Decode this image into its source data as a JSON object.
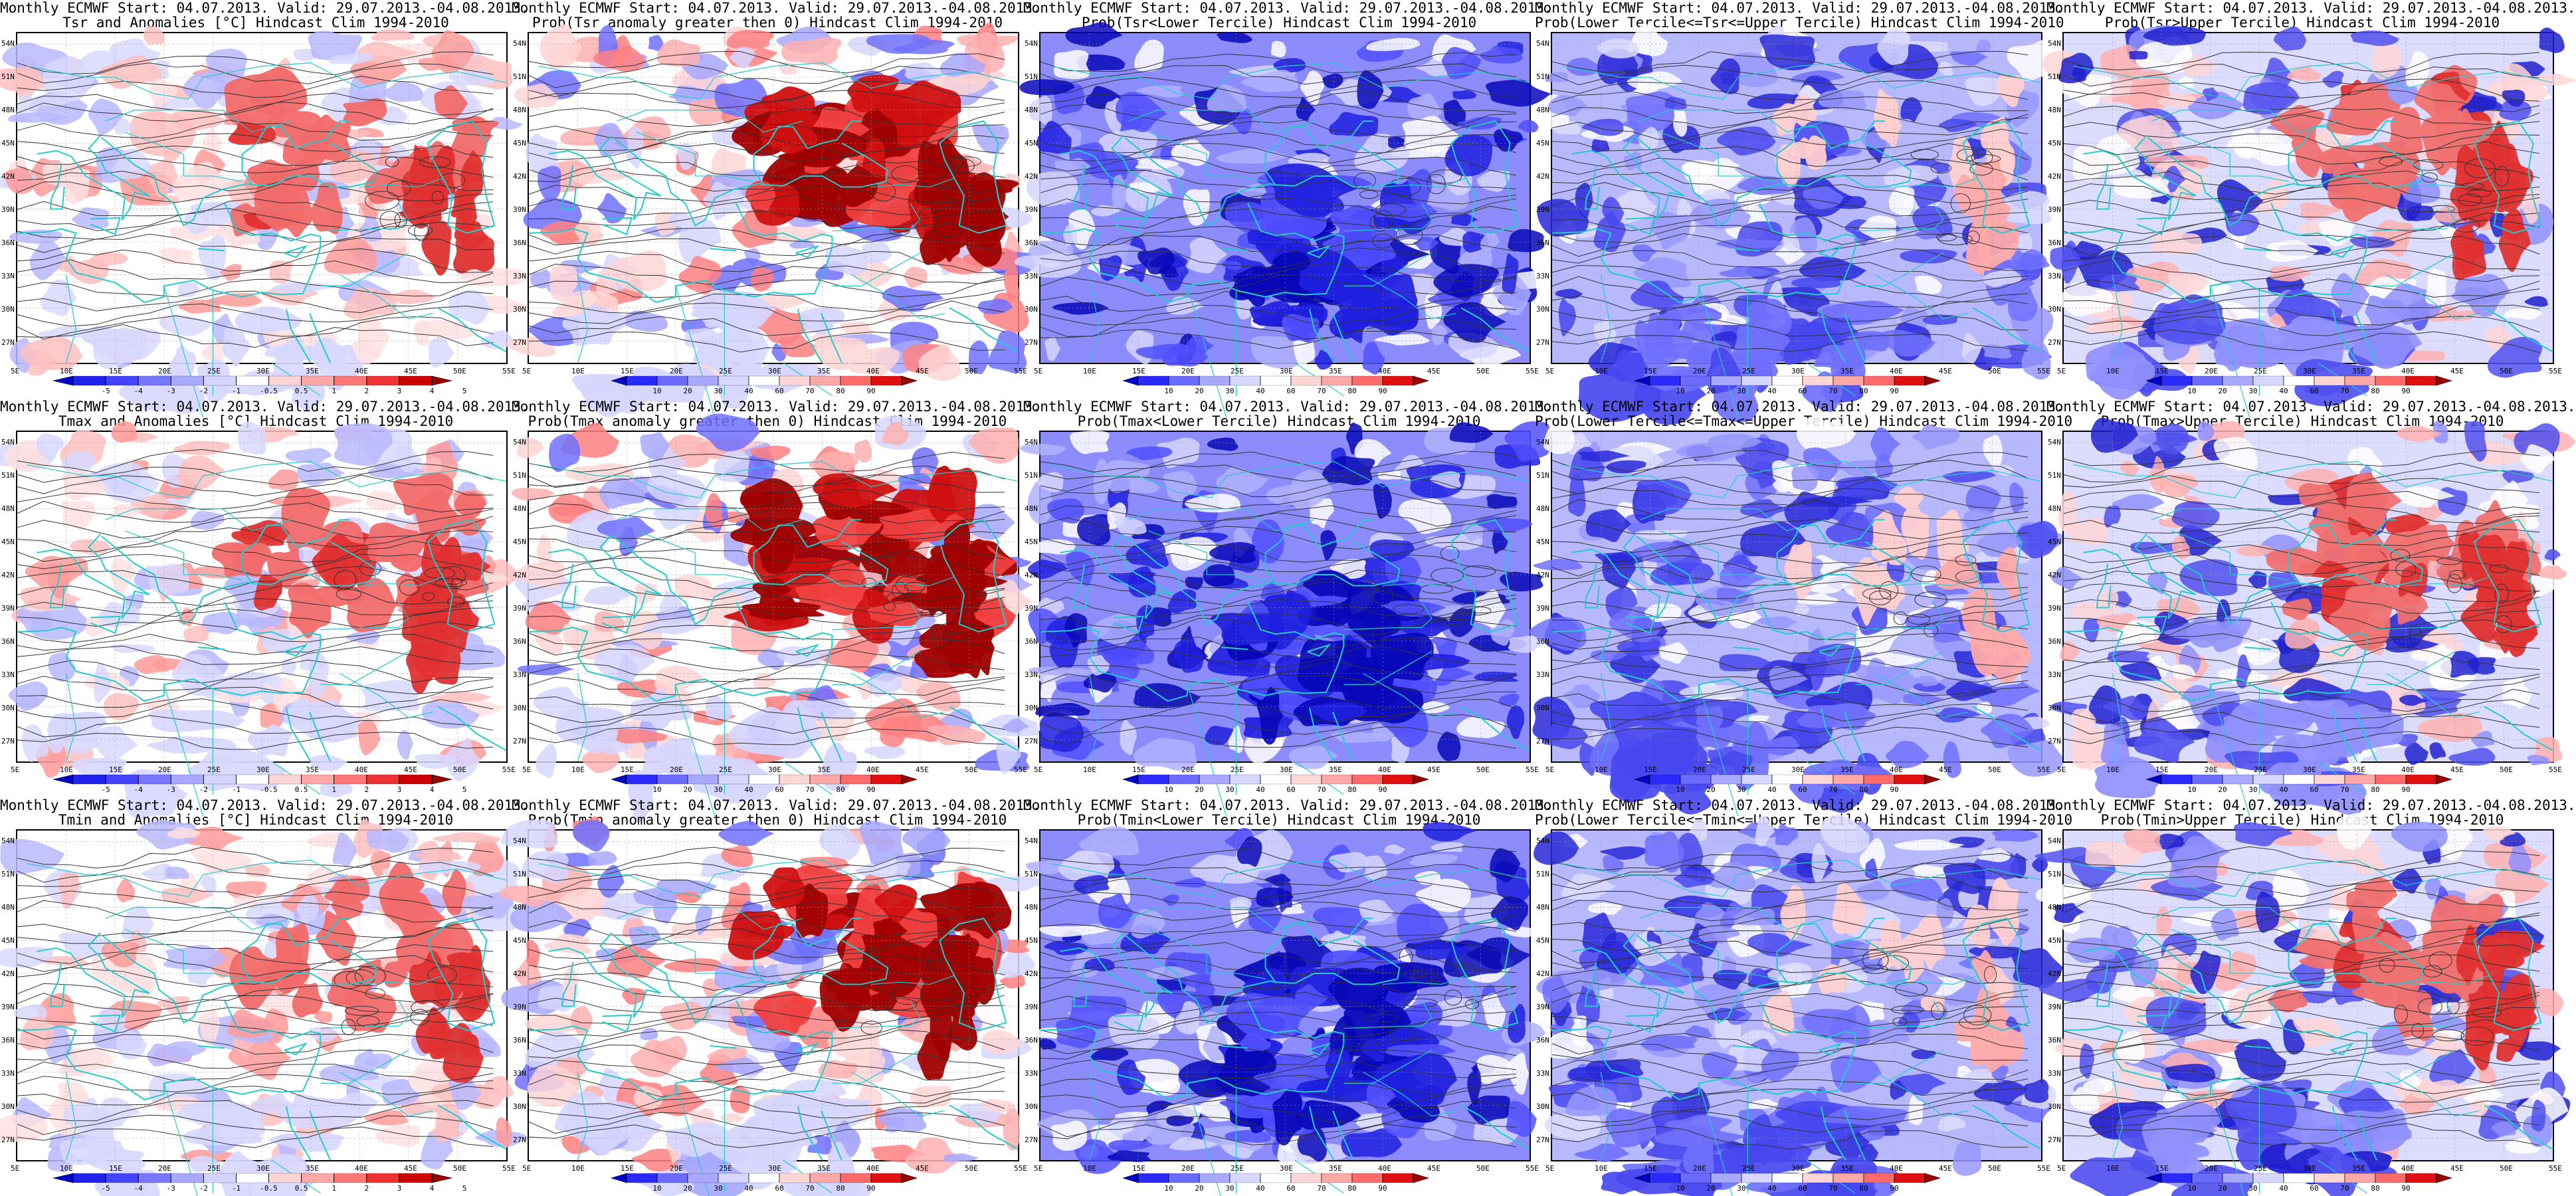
{
  "panels": [
    {
      "l1": "Monthly ECMWF Start: 04.07.2013. Valid: 29.07.2013.-04.08.2013.",
      "l2": "Tsr and Anomalies [°C] Hindcast Clim 1994-2010",
      "scheme": "anom",
      "cbar": "anom",
      "hot": 0.45,
      "cold": 0.1
    },
    {
      "l1": "Monthly ECMWF Start: 04.07.2013. Valid: 29.07.2013.-04.08.2013.",
      "l2": "Prob(Tsr anomaly greater then 0) Hindcast Clim 1994-2010",
      "scheme": "probpos",
      "cbar": "prob",
      "hot": 0.9,
      "cold": 0.2
    },
    {
      "l1": "Monthly ECMWF Start: 04.07.2013. Valid: 29.07.2013.-04.08.2013.",
      "l2": "Prob(Tsr<Lower Tercile) Hindcast Clim 1994-2010",
      "scheme": "blue",
      "cbar": "prob",
      "hot": 0,
      "cold": 0.85
    },
    {
      "l1": "Monthly ECMWF Start: 04.07.2013. Valid: 29.07.2013.-04.08.2013.",
      "l2": "Prob(Lower Tercile<=Tsr<=Upper Tercile) Hindcast Clim 1994-2010",
      "scheme": "mid",
      "cbar": "prob",
      "hot": 0.05,
      "cold": 0.5
    },
    {
      "l1": "Monthly ECMWF Start: 04.07.2013. Valid: 29.07.2013.-04.08.2013.",
      "l2": "Prob(Tsr>Upper Tercile) Hindcast Clim 1994-2010",
      "scheme": "upper",
      "cbar": "prob",
      "hot": 0.55,
      "cold": 0.4
    },
    {
      "l1": "Monthly ECMWF Start: 04.07.2013. Valid: 29.07.2013.-04.08.2013.",
      "l2": "Tmax and Anomalies [°C] Hindcast Clim 1994-2010",
      "scheme": "anom",
      "cbar": "anom",
      "hot": 0.55,
      "cold": 0.05
    },
    {
      "l1": "Monthly ECMWF Start: 04.07.2013. Valid: 29.07.2013.-04.08.2013.",
      "l2": "Prob(Tmax anomaly greater then 0) Hindcast Clim 1994-2010",
      "scheme": "probpos",
      "cbar": "prob",
      "hot": 0.95,
      "cold": 0.15
    },
    {
      "l1": "Monthly ECMWF Start: 04.07.2013. Valid: 29.07.2013.-04.08.2013.",
      "l2": "Prob(Tmax<Lower Tercile) Hindcast Clim 1994-2010",
      "scheme": "blue",
      "cbar": "prob",
      "hot": 0,
      "cold": 0.9
    },
    {
      "l1": "Monthly ECMWF Start: 04.07.2013. Valid: 29.07.2013.-04.08.2013.",
      "l2": "Prob(Lower Tercile<=Tmax<=Upper Tercile) Hindcast Clim 1994-2010",
      "scheme": "mid",
      "cbar": "prob",
      "hot": 0.05,
      "cold": 0.45
    },
    {
      "l1": "Monthly ECMWF Start: 04.07.2013. Valid: 29.07.2013.-04.08.2013.",
      "l2": "Prob(Tmax>Upper Tercile) Hindcast Clim 1994-2010",
      "scheme": "upper",
      "cbar": "prob",
      "hot": 0.6,
      "cold": 0.35
    },
    {
      "l1": "Monthly ECMWF Start: 04.07.2013. Valid: 29.07.2013.-04.08.2013.",
      "l2": "Tmin and Anomalies [°C] Hindcast Clim 1994-2010",
      "scheme": "anom",
      "cbar": "anom",
      "hot": 0.4,
      "cold": 0.12
    },
    {
      "l1": "Monthly ECMWF Start: 04.07.2013. Valid: 29.07.2013.-04.08.2013.",
      "l2": "Prob(Tmin anomaly greater then 0) Hindcast Clim 1994-2010",
      "scheme": "probpos",
      "cbar": "prob",
      "hot": 0.85,
      "cold": 0.3
    },
    {
      "l1": "Monthly ECMWF Start: 04.07.2013. Valid: 29.07.2013.-04.08.2013.",
      "l2": "Prob(Tmin<Lower Tercile) Hindcast Clim 1994-2010",
      "scheme": "blue",
      "cbar": "prob",
      "hot": 0.05,
      "cold": 0.8
    },
    {
      "l1": "Monthly ECMWF Start: 04.07.2013. Valid: 29.07.2013.-04.08.2013.",
      "l2": "Prob(Lower Tercile<=Tmin<=Upper Tercile) Hindcast Clim 1994-2010",
      "scheme": "mid",
      "cbar": "prob",
      "hot": 0.08,
      "cold": 0.5
    },
    {
      "l1": "Monthly ECMWF Start: 04.07.2013. Valid: 29.07.2013.-04.08.2013.",
      "l2": "Prob(Tmin>Upper Tercile) Hindcast Clim 1994-2010",
      "scheme": "upper",
      "cbar": "prob",
      "hot": 0.5,
      "cold": 0.6
    }
  ],
  "lat_labels": [
    "54N",
    "51N",
    "48N",
    "45N",
    "42N",
    "39N",
    "36N",
    "33N",
    "30N",
    "27N"
  ],
  "lon_labels": [
    "5E",
    "10E",
    "15E",
    "20E",
    "25E",
    "30E",
    "35E",
    "40E",
    "45E",
    "50E",
    "55E"
  ],
  "colorbars": {
    "anom": {
      "ticks": [
        "-5",
        "-4",
        "-3",
        "-2",
        "-1",
        "-0.5",
        "0.5",
        "1",
        "2",
        "3",
        "4",
        "5"
      ],
      "colors": [
        "#0000cc",
        "#2222ee",
        "#4444ff",
        "#7777ff",
        "#a8a8ff",
        "#d4d4ff",
        "#ffffff",
        "#ffd4d4",
        "#ffa8a8",
        "#ff7777",
        "#ee3333",
        "#cc0000",
        "#990000"
      ]
    },
    "prob": {
      "ticks": [
        "10",
        "20",
        "30",
        "40",
        "60",
        "70",
        "80",
        "90"
      ],
      "colors": [
        "#0000cc",
        "#2a2aff",
        "#6b6bff",
        "#a8a8ff",
        "#d6d6ff",
        "#ffffff",
        "#ffd6d6",
        "#ffa8a8",
        "#ff6b6b",
        "#e01010",
        "#990000"
      ]
    }
  },
  "palette": {
    "coast": "#22cccc",
    "contour": "#333333",
    "deep_blue": "#0a0ad0",
    "red": "#dd1111"
  }
}
